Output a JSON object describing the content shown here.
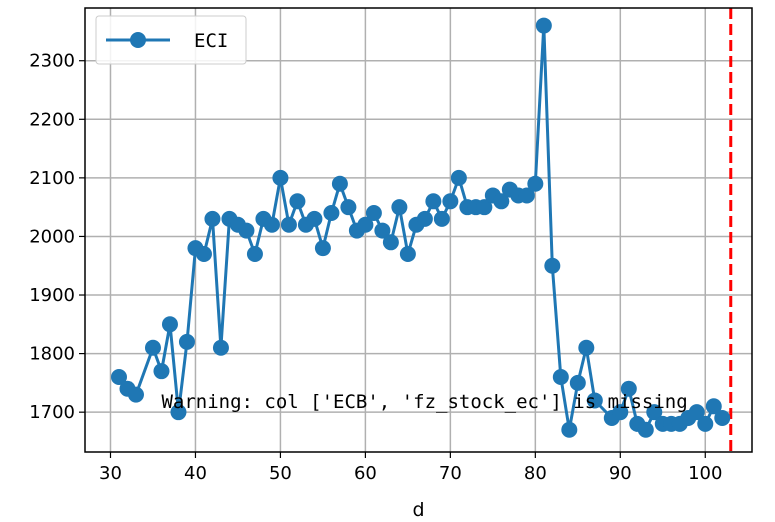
{
  "chart_data": {
    "type": "line",
    "xlabel": "d",
    "ylabel": "",
    "xlim": [
      27,
      105.5
    ],
    "ylim": [
      1632,
      2390
    ],
    "xticks": [
      30,
      40,
      50,
      60,
      70,
      80,
      90,
      100
    ],
    "yticks": [
      1700,
      1800,
      1900,
      2000,
      2100,
      2200,
      2300
    ],
    "grid": true,
    "legend_position": "top-left",
    "series": [
      {
        "name": "ECI",
        "color": "#1f77b4",
        "marker": "circle",
        "x": [
          31,
          32,
          33,
          35,
          36,
          37,
          38,
          39,
          40,
          41,
          42,
          43,
          44,
          45,
          46,
          47,
          48,
          49,
          50,
          51,
          52,
          53,
          54,
          55,
          56,
          57,
          58,
          59,
          60,
          61,
          62,
          63,
          64,
          65,
          66,
          67,
          68,
          69,
          70,
          71,
          72,
          73,
          74,
          75,
          76,
          77,
          78,
          79,
          80,
          81,
          82,
          83,
          84,
          85,
          86,
          87,
          89,
          90,
          91,
          92,
          93,
          94,
          95,
          96,
          97,
          98,
          99,
          100,
          101,
          102
        ],
        "values": [
          1760,
          1740,
          1730,
          1810,
          1770,
          1850,
          1700,
          1820,
          1980,
          1970,
          2030,
          1810,
          2030,
          2020,
          2010,
          1970,
          2030,
          2020,
          2100,
          2020,
          2060,
          2020,
          2030,
          1980,
          2040,
          2090,
          2050,
          2010,
          2020,
          2040,
          2010,
          1990,
          2050,
          1970,
          2020,
          2030,
          2060,
          2030,
          2060,
          2100,
          2050,
          2050,
          2050,
          2070,
          2060,
          2080,
          2070,
          2070,
          2090,
          2360,
          1950,
          1760,
          1670,
          1750,
          1810,
          1720,
          1690,
          1700,
          1740,
          1680,
          1670,
          1700,
          1680,
          1680,
          1680,
          1690,
          1700,
          1680,
          1710,
          1690
        ]
      }
    ],
    "reference_line": {
      "x": 103,
      "color": "#ff0000",
      "style": "dashed"
    },
    "annotation": {
      "text": "Warning: col ['ECB', 'fz_stock_ec'] is missing",
      "x": 36,
      "y": 1707
    }
  }
}
